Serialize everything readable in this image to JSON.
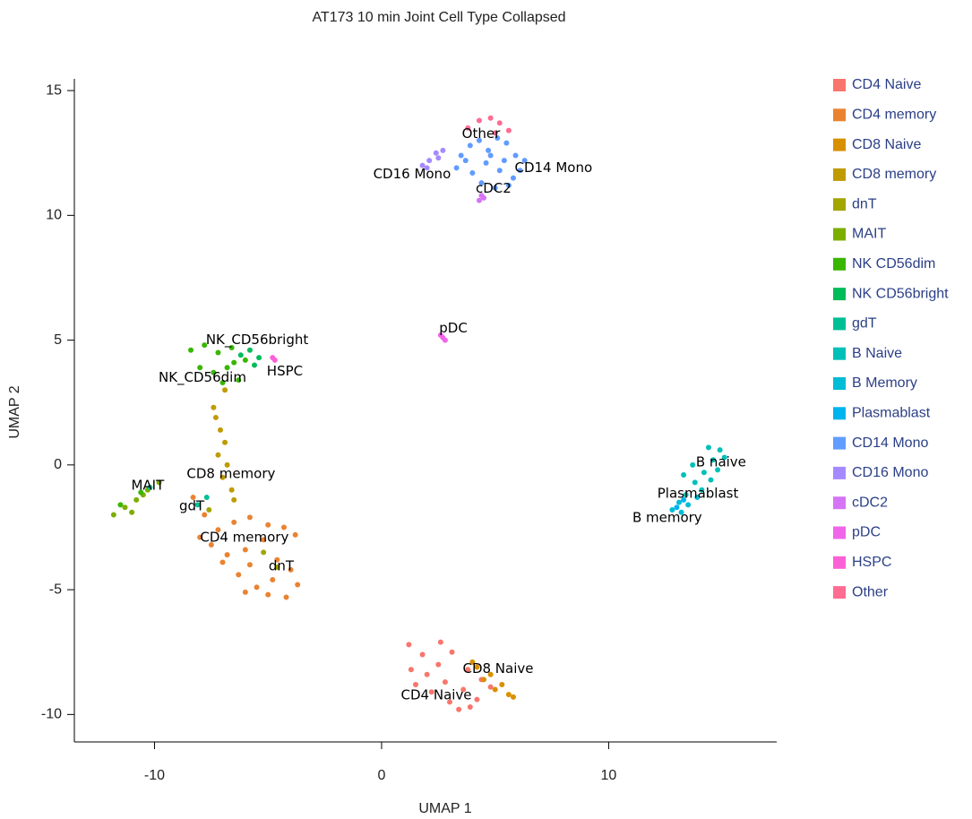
{
  "chart_data": {
    "type": "scatter",
    "title": "AT173 10 min Joint Cell Type Collapsed",
    "xlabel": "UMAP 1",
    "ylabel": "UMAP 2",
    "xlim": [
      -13.53,
      17.4
    ],
    "ylim": [
      -11.1,
      15.47
    ],
    "xticks": [
      -10,
      0,
      10
    ],
    "yticks": [
      -10,
      -5,
      0,
      5,
      10,
      15
    ],
    "legend": "right",
    "series": [
      {
        "name": "CD4 Naive",
        "color": "#F8766D",
        "x": [
          1.2,
          1.8,
          2.5,
          3.1,
          3.8,
          4.4,
          1.5,
          2.2,
          3.0,
          3.6,
          4.2,
          2.0,
          2.8,
          3.4,
          1.3,
          4.8,
          2.6,
          3.9
        ],
        "values": [
          -7.2,
          -7.6,
          -8.0,
          -7.5,
          -8.2,
          -8.6,
          -8.8,
          -9.1,
          -9.5,
          -9.0,
          -9.4,
          -8.4,
          -8.7,
          -9.8,
          -8.2,
          -8.9,
          -7.1,
          -9.7
        ]
      },
      {
        "name": "CD4 memory",
        "color": "#EA8331",
        "x": [
          -8.3,
          -7.8,
          -7.2,
          -6.5,
          -5.8,
          -5.0,
          -4.3,
          -3.8,
          -7.5,
          -6.8,
          -6.0,
          -5.2,
          -4.6,
          -4.0,
          -6.3,
          -5.5,
          -4.8,
          -7.0,
          -6.0,
          -4.2,
          -5.0,
          -3.7,
          -8.0,
          -5.8
        ],
        "values": [
          -1.3,
          -2.0,
          -2.6,
          -2.3,
          -2.1,
          -2.4,
          -2.5,
          -2.8,
          -3.2,
          -3.6,
          -3.4,
          -3.0,
          -3.8,
          -4.2,
          -4.4,
          -4.9,
          -4.6,
          -3.9,
          -5.1,
          -5.3,
          -5.2,
          -4.8,
          -2.9,
          -4.0
        ]
      },
      {
        "name": "CD8 Naive",
        "color": "#D89000",
        "x": [
          4.2,
          4.8,
          5.3,
          5.6,
          5.0,
          4.5,
          5.8,
          4.0
        ],
        "values": [
          -8.1,
          -8.4,
          -8.8,
          -9.2,
          -9.0,
          -8.6,
          -9.3,
          -7.9
        ]
      },
      {
        "name": "CD8 memory",
        "color": "#BF9B00",
        "x": [
          -7.3,
          -7.1,
          -6.9,
          -7.2,
          -6.8,
          -7.0,
          -6.6,
          -7.4,
          -6.9,
          -6.5
        ],
        "values": [
          1.9,
          1.4,
          0.9,
          0.4,
          0.0,
          -0.5,
          -1.0,
          2.3,
          3.0,
          -1.4
        ]
      },
      {
        "name": "dnT",
        "color": "#A3A500",
        "x": [
          -4.6,
          -5.2,
          -7.6
        ],
        "values": [
          -4.1,
          -3.5,
          -1.8
        ]
      },
      {
        "name": "MAIT",
        "color": "#7CAE00",
        "x": [
          -11.8,
          -11.3,
          -10.8,
          -10.3,
          -9.8,
          -11.0,
          -10.5
        ],
        "values": [
          -2.0,
          -1.7,
          -1.4,
          -1.0,
          -0.7,
          -1.9,
          -1.2
        ]
      },
      {
        "name": "NK CD56dim",
        "color": "#39B600",
        "x": [
          -8.4,
          -7.8,
          -7.2,
          -6.6,
          -6.0,
          -8.0,
          -7.4,
          -6.8,
          -6.3,
          -7.0,
          -6.5,
          -11.5,
          -10.6
        ],
        "values": [
          4.6,
          4.8,
          4.5,
          4.7,
          4.2,
          3.9,
          3.7,
          3.9,
          3.4,
          3.3,
          4.1,
          -1.6,
          -1.1
        ]
      },
      {
        "name": "NK CD56bright",
        "color": "#00BC59",
        "x": [
          -5.8,
          -5.4,
          -6.2,
          -5.6
        ],
        "values": [
          4.6,
          4.3,
          4.4,
          4.0
        ]
      },
      {
        "name": "gdT",
        "color": "#00BF95",
        "x": [
          -8.1,
          -7.7,
          -10.2
        ],
        "values": [
          -1.6,
          -1.3,
          -0.9
        ]
      },
      {
        "name": "B Naive",
        "color": "#00C0B8",
        "x": [
          13.4,
          13.8,
          14.2,
          14.6,
          14.9,
          14.5,
          14.1,
          13.7,
          14.8,
          15.1,
          14.4,
          13.3
        ],
        "values": [
          -1.2,
          -0.7,
          -0.3,
          0.2,
          0.6,
          -0.6,
          -1.0,
          0.0,
          -0.2,
          0.3,
          0.7,
          -0.4
        ]
      },
      {
        "name": "B Memory",
        "color": "#00BCD6",
        "x": [
          12.8,
          13.1,
          13.5,
          13.9,
          13.2
        ],
        "values": [
          -1.8,
          -1.5,
          -1.6,
          -1.3,
          -1.9
        ]
      },
      {
        "name": "Plasmablast",
        "color": "#00B4EF",
        "x": [
          13.3,
          13.0
        ],
        "values": [
          -1.4,
          -1.7
        ]
      },
      {
        "name": "CD14 Mono",
        "color": "#619CFF",
        "x": [
          3.5,
          3.9,
          4.3,
          4.7,
          5.1,
          5.5,
          5.9,
          6.3,
          4.0,
          4.6,
          5.2,
          5.8,
          4.4,
          5.0,
          5.6,
          6.1,
          4.8,
          5.4,
          3.3,
          3.7
        ],
        "values": [
          12.4,
          12.8,
          13.0,
          12.6,
          13.1,
          12.9,
          12.4,
          12.2,
          11.7,
          12.1,
          11.8,
          11.5,
          11.3,
          11.1,
          11.2,
          11.8,
          12.4,
          12.2,
          11.9,
          12.2
        ]
      },
      {
        "name": "CD16 Mono",
        "color": "#A58AFF",
        "x": [
          1.8,
          2.1,
          2.4,
          2.7,
          2.0,
          2.5
        ],
        "values": [
          12.0,
          12.2,
          12.5,
          12.6,
          11.9,
          12.3
        ]
      },
      {
        "name": "cDC2",
        "color": "#D674F5",
        "x": [
          4.3,
          4.4,
          4.5
        ],
        "values": [
          10.6,
          10.8,
          10.7
        ]
      },
      {
        "name": "pDC",
        "color": "#F066EA",
        "x": [
          2.6,
          2.7,
          2.8
        ],
        "values": [
          5.2,
          5.1,
          5.0
        ]
      },
      {
        "name": "HSPC",
        "color": "#FB61D7",
        "x": [
          -4.8,
          -4.7
        ],
        "values": [
          4.3,
          4.2
        ]
      },
      {
        "name": "Other",
        "color": "#FF6C91",
        "x": [
          3.8,
          4.3,
          4.8,
          5.2,
          5.6,
          5.0
        ],
        "values": [
          13.5,
          13.8,
          13.9,
          13.7,
          13.4,
          13.3
        ]
      }
    ],
    "annotations": [
      {
        "text": "Other",
        "x": 4.38,
        "y": 13.27
      },
      {
        "text": "CD14 Mono",
        "x": 7.57,
        "y": 11.9
      },
      {
        "text": "CD16 Mono",
        "x": 1.34,
        "y": 11.65
      },
      {
        "text": "cDC2",
        "x": 4.93,
        "y": 11.08
      },
      {
        "text": "pDC",
        "x": 3.16,
        "y": 5.47
      },
      {
        "text": "NK_CD56bright",
        "x": -5.48,
        "y": 5.0
      },
      {
        "text": "HSPC",
        "x": -4.26,
        "y": 3.74
      },
      {
        "text": "NK_CD56dim",
        "x": -7.89,
        "y": 3.49
      },
      {
        "text": "CD8 memory",
        "x": -6.63,
        "y": -0.36
      },
      {
        "text": "MAIT",
        "x": -10.3,
        "y": -0.83
      },
      {
        "text": "gdT",
        "x": -8.36,
        "y": -1.65
      },
      {
        "text": "CD4 memory",
        "x": -6.04,
        "y": -2.91
      },
      {
        "text": "dnT",
        "x": -4.42,
        "y": -4.06
      },
      {
        "text": "B naive",
        "x": 14.95,
        "y": 0.11
      },
      {
        "text": "Plasmablast",
        "x": 13.93,
        "y": -1.15
      },
      {
        "text": "B memory",
        "x": 12.58,
        "y": -2.12
      },
      {
        "text": "CD8 Naive",
        "x": 5.13,
        "y": -8.17
      },
      {
        "text": "CD4 Naive",
        "x": 2.41,
        "y": -9.24
      }
    ]
  }
}
